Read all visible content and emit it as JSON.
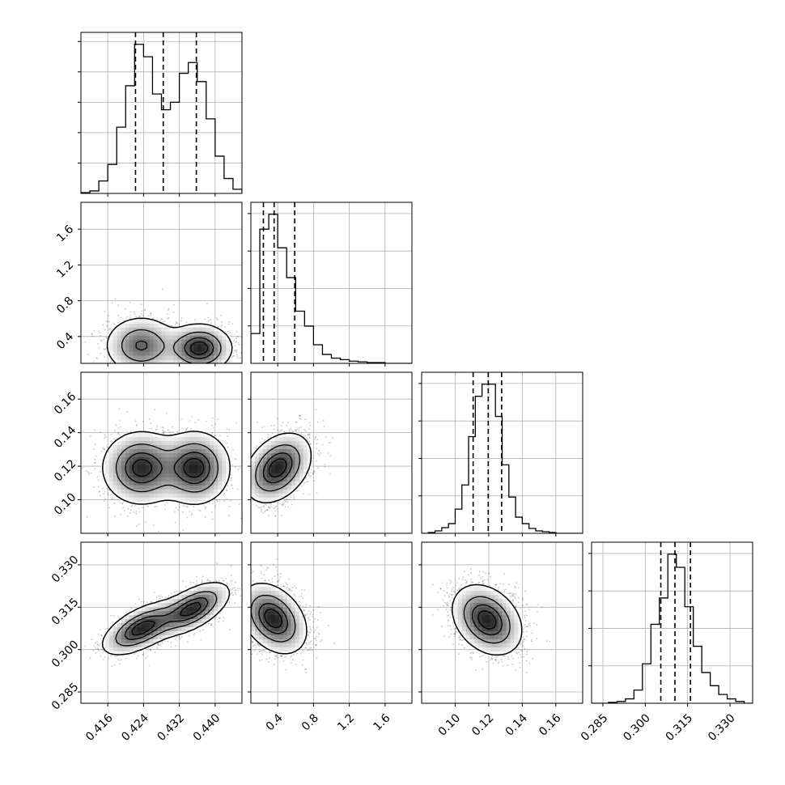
{
  "chart_data": {
    "type": "corner",
    "grid": true,
    "panels": [
      {
        "id": "hist-0",
        "row": 0,
        "col": 0,
        "type": "histogram",
        "xlim": [
          0.41,
          0.446
        ],
        "bins": [
          0.41,
          0.412,
          0.414,
          0.416,
          0.418,
          0.42,
          0.422,
          0.424,
          0.426,
          0.428,
          0.43,
          0.432,
          0.434,
          0.436,
          0.438,
          0.44,
          0.442,
          0.444,
          0.446
        ],
        "counts": [
          1,
          3,
          15,
          35,
          80,
          130,
          180,
          165,
          120,
          101,
          110,
          145,
          158,
          135,
          90,
          45,
          18,
          5
        ],
        "quantiles": [
          0.4222,
          0.4284,
          0.4358
        ],
        "yticks": 5
      },
      {
        "id": "hist-1",
        "row": 1,
        "col": 1,
        "type": "histogram",
        "xlim": [
          0.1,
          1.9
        ],
        "bins": [
          0.1,
          0.2,
          0.3,
          0.4,
          0.5,
          0.6,
          0.7,
          0.8,
          0.9,
          1.0,
          1.1,
          1.2,
          1.3,
          1.4,
          1.5,
          1.6,
          1.7,
          1.8,
          1.9
        ],
        "counts": [
          40,
          180,
          200,
          155,
          115,
          70,
          50,
          25,
          12,
          7,
          5,
          3,
          2,
          1,
          1,
          0,
          0,
          0
        ],
        "quantiles": [
          0.24,
          0.36,
          0.59
        ],
        "yticks": 4
      },
      {
        "id": "hist-2",
        "row": 2,
        "col": 2,
        "type": "histogram",
        "xlim": [
          0.08,
          0.176
        ],
        "bins": [
          0.08,
          0.084,
          0.088,
          0.092,
          0.096,
          0.1,
          0.104,
          0.108,
          0.112,
          0.116,
          0.12,
          0.124,
          0.128,
          0.132,
          0.136,
          0.14,
          0.144,
          0.148,
          0.152,
          0.156,
          0.16,
          0.164,
          0.168,
          0.172,
          0.176
        ],
        "counts": [
          0,
          1,
          3,
          7,
          12,
          30,
          60,
          120,
          170,
          185,
          185,
          145,
          85,
          45,
          20,
          12,
          6,
          3,
          2,
          1,
          0,
          0,
          0,
          0
        ],
        "quantiles": [
          0.1107,
          0.1197,
          0.1277
        ],
        "yticks": 4
      },
      {
        "id": "hist-3",
        "row": 3,
        "col": 3,
        "type": "histogram",
        "xlim": [
          0.281,
          0.338
        ],
        "bins": [
          0.281,
          0.284,
          0.287,
          0.29,
          0.293,
          0.296,
          0.299,
          0.302,
          0.305,
          0.308,
          0.311,
          0.314,
          0.317,
          0.32,
          0.323,
          0.326,
          0.329,
          0.332,
          0.335,
          0.338
        ],
        "counts": [
          0,
          0,
          1,
          2,
          5,
          15,
          45,
          90,
          120,
          170,
          155,
          110,
          65,
          35,
          20,
          10,
          5,
          2,
          0
        ],
        "quantiles": [
          0.3055,
          0.3105,
          0.316
        ],
        "yticks": 4
      },
      {
        "id": "scatter-1-0",
        "row": 1,
        "col": 0,
        "type": "density",
        "x": "p0",
        "y": "p1",
        "xlim": [
          0.41,
          0.446
        ],
        "ylim": [
          0.1,
          1.9
        ],
        "modes": [
          {
            "mx": 0.4235,
            "my": 0.3,
            "sx": 0.004,
            "sy": 0.16,
            "rho": 0.0,
            "w": 0.5
          },
          {
            "mx": 0.4365,
            "my": 0.27,
            "sx": 0.0035,
            "sy": 0.13,
            "rho": 0.0,
            "w": 0.5
          }
        ]
      },
      {
        "id": "scatter-2-0",
        "row": 2,
        "col": 0,
        "type": "density",
        "x": "p0",
        "y": "p2",
        "xlim": [
          0.41,
          0.446
        ],
        "ylim": [
          0.08,
          0.176
        ],
        "modes": [
          {
            "mx": 0.4235,
            "my": 0.119,
            "sx": 0.0042,
            "sy": 0.0105,
            "rho": 0.0,
            "w": 0.52
          },
          {
            "mx": 0.4355,
            "my": 0.119,
            "sx": 0.0038,
            "sy": 0.0105,
            "rho": 0.0,
            "w": 0.48
          }
        ]
      },
      {
        "id": "scatter-2-1",
        "row": 2,
        "col": 1,
        "type": "density",
        "x": "p1",
        "y": "p2",
        "xlim": [
          0.1,
          1.9
        ],
        "ylim": [
          0.08,
          0.176
        ],
        "modes": [
          {
            "mx": 0.4,
            "my": 0.119,
            "sx": 0.18,
            "sy": 0.01,
            "rho": 0.35,
            "w": 1.0
          }
        ]
      },
      {
        "id": "scatter-3-0",
        "row": 3,
        "col": 0,
        "type": "density",
        "x": "p0",
        "y": "p3",
        "xlim": [
          0.41,
          0.446
        ],
        "ylim": [
          0.281,
          0.338
        ],
        "modes": [
          {
            "mx": 0.4235,
            "my": 0.3075,
            "sx": 0.0042,
            "sy": 0.0045,
            "rho": 0.6,
            "w": 0.52
          },
          {
            "mx": 0.435,
            "my": 0.3145,
            "sx": 0.004,
            "sy": 0.0045,
            "rho": 0.6,
            "w": 0.48
          }
        ]
      },
      {
        "id": "scatter-3-1",
        "row": 3,
        "col": 1,
        "type": "density",
        "x": "p1",
        "y": "p3",
        "xlim": [
          0.1,
          1.9
        ],
        "ylim": [
          0.281,
          0.338
        ],
        "modes": [
          {
            "mx": 0.35,
            "my": 0.311,
            "sx": 0.18,
            "sy": 0.006,
            "rho": -0.35,
            "w": 1.0
          }
        ]
      },
      {
        "id": "scatter-3-2",
        "row": 3,
        "col": 2,
        "type": "density",
        "x": "p2",
        "y": "p3",
        "xlim": [
          0.08,
          0.176
        ],
        "ylim": [
          0.281,
          0.338
        ],
        "modes": [
          {
            "mx": 0.119,
            "my": 0.3105,
            "sx": 0.01,
            "sy": 0.006,
            "rho": -0.3,
            "w": 1.0
          }
        ]
      }
    ],
    "axes": {
      "col_xticks": [
        [
          "0.416",
          "0.424",
          "0.432",
          "0.440"
        ],
        [
          "0.4",
          "0.8",
          "1.2",
          "1.6"
        ],
        [
          "0.10",
          "0.12",
          "0.14",
          "0.16"
        ],
        [
          "0.285",
          "0.300",
          "0.315",
          "0.330"
        ]
      ],
      "col_xtick_values": [
        [
          0.416,
          0.424,
          0.432,
          0.44
        ],
        [
          0.4,
          0.8,
          1.2,
          1.6
        ],
        [
          0.1,
          0.12,
          0.14,
          0.16
        ],
        [
          0.285,
          0.3,
          0.315,
          0.33
        ]
      ],
      "row_yticks": [
        [],
        [
          "0.4",
          "0.8",
          "1.2",
          "1.6"
        ],
        [
          "0.10",
          "0.12",
          "0.14",
          "0.16"
        ],
        [
          "0.285",
          "0.300",
          "0.315",
          "0.330"
        ]
      ],
      "row_ytick_values": [
        [],
        [
          0.4,
          0.8,
          1.2,
          1.6
        ],
        [
          0.1,
          0.12,
          0.14,
          0.16
        ],
        [
          0.285,
          0.3,
          0.315,
          0.33
        ]
      ]
    },
    "contour_levels": [
      0.118,
      0.393,
      0.675,
      0.864
    ],
    "colors": {
      "line": "#000000",
      "grid": "#b0b0b0",
      "scatter": "#000000",
      "fill_light": "#ffffff"
    }
  }
}
